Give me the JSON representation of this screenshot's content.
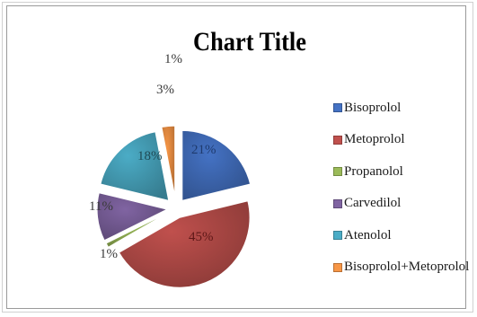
{
  "chart_data": {
    "type": "pie",
    "title": "Chart Title",
    "series": [
      {
        "name": "Bisoprolol",
        "value": 21,
        "label": "21%",
        "color": "#4472c4"
      },
      {
        "name": "Metoprolol",
        "value": 45,
        "label": "45%",
        "color": "#c0504d"
      },
      {
        "name": "Propanolol",
        "value": 1,
        "label": "1%",
        "color": "#9bbb59"
      },
      {
        "name": "Carvedilol",
        "value": 11,
        "label": "11%",
        "color": "#8064a2"
      },
      {
        "name": "Atenolol",
        "value": 18,
        "label": "18%",
        "color": "#4bacc6"
      },
      {
        "name": "Bisoprolol+Metoprolol",
        "value": 3,
        "label": "3%",
        "color": "#f79646"
      }
    ],
    "extra_labels": [
      "1%"
    ],
    "legend_position": "right",
    "exploded": true
  }
}
